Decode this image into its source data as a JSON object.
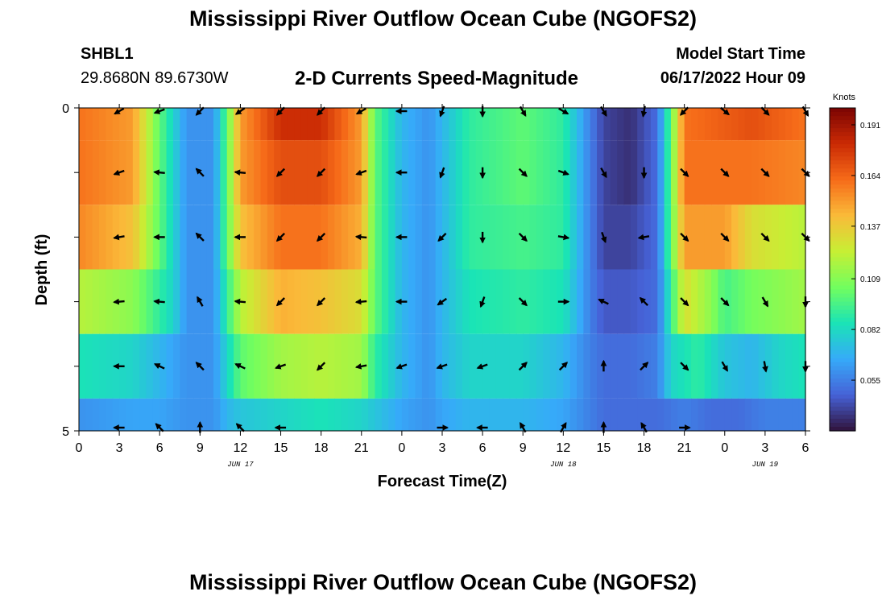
{
  "header": {
    "title": "Mississippi River Outflow Ocean Cube (NGOFS2)",
    "station": "SHBL1",
    "coords": "29.8680N  89.6730W",
    "subtitle": "2-D Currents Speed-Magnitude",
    "model_start_label": "Model Start Time",
    "model_start_value": "06/17/2022 Hour 09"
  },
  "footer": {
    "title": "Mississippi River Outflow Ocean Cube (NGOFS2)"
  },
  "colors": {
    "colormap": [
      "#30123b",
      "#4662d7",
      "#36aaf9",
      "#1ae4b6",
      "#72fe5e",
      "#c7ef34",
      "#faba39",
      "#f66b19",
      "#ca2a04",
      "#7a0403"
    ]
  },
  "chart_data": {
    "type": "heatmap",
    "xlabel": "Forecast Time(Z)",
    "ylabel": "Depth (ft)",
    "xlim": [
      0,
      54
    ],
    "ylim": [
      0,
      5
    ],
    "x_ticks": [
      {
        "v": 0,
        "t": "0"
      },
      {
        "v": 3,
        "t": "3"
      },
      {
        "v": 6,
        "t": "6"
      },
      {
        "v": 9,
        "t": "9"
      },
      {
        "v": 12,
        "t": "12"
      },
      {
        "v": 15,
        "t": "15"
      },
      {
        "v": 18,
        "t": "18"
      },
      {
        "v": 21,
        "t": "21"
      },
      {
        "v": 24,
        "t": "0"
      },
      {
        "v": 27,
        "t": "3"
      },
      {
        "v": 30,
        "t": "6"
      },
      {
        "v": 33,
        "t": "9"
      },
      {
        "v": 36,
        "t": "12"
      },
      {
        "v": 39,
        "t": "15"
      },
      {
        "v": 42,
        "t": "18"
      },
      {
        "v": 45,
        "t": "21"
      },
      {
        "v": 48,
        "t": "0"
      },
      {
        "v": 51,
        "t": "3"
      },
      {
        "v": 54,
        "t": "6"
      }
    ],
    "date_labels": [
      {
        "v": 12,
        "t": "JUN 17"
      },
      {
        "v": 36,
        "t": "JUN 18"
      },
      {
        "v": 51,
        "t": "JUN 19"
      }
    ],
    "y_ticks": [
      0,
      1,
      2,
      3,
      4,
      5
    ],
    "y_tick_labels": [
      {
        "v": 0,
        "t": "0"
      },
      {
        "v": 5,
        "t": "5"
      }
    ],
    "colorbar": {
      "title": "Knots",
      "range": [
        0.028,
        0.2
      ],
      "ticks": [
        0.191,
        0.164,
        0.137,
        0.109,
        0.082,
        0.055
      ]
    },
    "layers": [
      {
        "depth_top": 0.0,
        "depth_bottom": 0.5,
        "keys": [
          [
            0,
            0.16
          ],
          [
            4,
            0.15
          ],
          [
            6,
            0.1
          ],
          [
            7,
            0.08
          ],
          [
            8,
            0.06
          ],
          [
            10,
            0.06
          ],
          [
            11,
            0.1
          ],
          [
            12,
            0.15
          ],
          [
            15,
            0.18
          ],
          [
            18,
            0.18
          ],
          [
            21,
            0.15
          ],
          [
            22,
            0.1
          ],
          [
            24,
            0.07
          ],
          [
            26,
            0.06
          ],
          [
            27,
            0.07
          ],
          [
            29,
            0.09
          ],
          [
            33,
            0.1
          ],
          [
            36,
            0.09
          ],
          [
            38,
            0.055
          ],
          [
            39,
            0.04
          ],
          [
            41,
            0.035
          ],
          [
            43,
            0.05
          ],
          [
            44,
            0.1
          ],
          [
            45,
            0.16
          ],
          [
            50,
            0.17
          ],
          [
            54,
            0.16
          ]
        ]
      },
      {
        "depth_top": 0.5,
        "depth_bottom": 1.5,
        "keys": [
          [
            0,
            0.16
          ],
          [
            4,
            0.15
          ],
          [
            6,
            0.1
          ],
          [
            7,
            0.08
          ],
          [
            8,
            0.06
          ],
          [
            10,
            0.06
          ],
          [
            11,
            0.1
          ],
          [
            12,
            0.15
          ],
          [
            15,
            0.17
          ],
          [
            18,
            0.17
          ],
          [
            21,
            0.15
          ],
          [
            22,
            0.1
          ],
          [
            24,
            0.07
          ],
          [
            26,
            0.06
          ],
          [
            27,
            0.07
          ],
          [
            29,
            0.09
          ],
          [
            33,
            0.1
          ],
          [
            36,
            0.09
          ],
          [
            38,
            0.055
          ],
          [
            39,
            0.04
          ],
          [
            41,
            0.035
          ],
          [
            43,
            0.05
          ],
          [
            44,
            0.1
          ],
          [
            45,
            0.16
          ],
          [
            50,
            0.16
          ],
          [
            54,
            0.155
          ]
        ]
      },
      {
        "depth_top": 1.5,
        "depth_bottom": 2.5,
        "keys": [
          [
            0,
            0.155
          ],
          [
            4,
            0.14
          ],
          [
            6,
            0.1
          ],
          [
            7,
            0.08
          ],
          [
            8,
            0.06
          ],
          [
            10,
            0.06
          ],
          [
            11,
            0.1
          ],
          [
            12,
            0.14
          ],
          [
            15,
            0.16
          ],
          [
            18,
            0.16
          ],
          [
            21,
            0.145
          ],
          [
            22,
            0.1
          ],
          [
            24,
            0.07
          ],
          [
            26,
            0.06
          ],
          [
            27,
            0.07
          ],
          [
            29,
            0.09
          ],
          [
            33,
            0.095
          ],
          [
            36,
            0.09
          ],
          [
            38,
            0.055
          ],
          [
            39,
            0.04
          ],
          [
            41,
            0.04
          ],
          [
            43,
            0.05
          ],
          [
            44,
            0.1
          ],
          [
            45,
            0.15
          ],
          [
            48,
            0.15
          ],
          [
            50,
            0.13
          ],
          [
            54,
            0.12
          ]
        ]
      },
      {
        "depth_top": 2.5,
        "depth_bottom": 3.5,
        "keys": [
          [
            0,
            0.12
          ],
          [
            4,
            0.11
          ],
          [
            6,
            0.09
          ],
          [
            7,
            0.08
          ],
          [
            8,
            0.06
          ],
          [
            10,
            0.06
          ],
          [
            11,
            0.09
          ],
          [
            12,
            0.12
          ],
          [
            15,
            0.145
          ],
          [
            18,
            0.14
          ],
          [
            21,
            0.13
          ],
          [
            22,
            0.1
          ],
          [
            24,
            0.07
          ],
          [
            26,
            0.06
          ],
          [
            27,
            0.07
          ],
          [
            29,
            0.085
          ],
          [
            33,
            0.09
          ],
          [
            36,
            0.085
          ],
          [
            38,
            0.055
          ],
          [
            39,
            0.045
          ],
          [
            41,
            0.045
          ],
          [
            43,
            0.05
          ],
          [
            44,
            0.09
          ],
          [
            45,
            0.13
          ],
          [
            47,
            0.11
          ],
          [
            48,
            0.095
          ],
          [
            50,
            0.105
          ],
          [
            54,
            0.115
          ]
        ]
      },
      {
        "depth_top": 3.5,
        "depth_bottom": 4.5,
        "keys": [
          [
            0,
            0.085
          ],
          [
            4,
            0.08
          ],
          [
            6,
            0.07
          ],
          [
            8,
            0.06
          ],
          [
            10,
            0.06
          ],
          [
            11,
            0.08
          ],
          [
            12,
            0.1
          ],
          [
            15,
            0.115
          ],
          [
            18,
            0.12
          ],
          [
            21,
            0.115
          ],
          [
            22,
            0.09
          ],
          [
            24,
            0.07
          ],
          [
            26,
            0.06
          ],
          [
            27,
            0.07
          ],
          [
            29,
            0.08
          ],
          [
            33,
            0.08
          ],
          [
            36,
            0.07
          ],
          [
            38,
            0.055
          ],
          [
            39,
            0.05
          ],
          [
            41,
            0.05
          ],
          [
            43,
            0.055
          ],
          [
            44,
            0.08
          ],
          [
            46,
            0.09
          ],
          [
            48,
            0.075
          ],
          [
            50,
            0.07
          ],
          [
            52,
            0.08
          ],
          [
            54,
            0.085
          ]
        ]
      },
      {
        "depth_top": 4.5,
        "depth_bottom": 5.0,
        "keys": [
          [
            0,
            0.06
          ],
          [
            4,
            0.065
          ],
          [
            6,
            0.065
          ],
          [
            8,
            0.06
          ],
          [
            10,
            0.06
          ],
          [
            11,
            0.07
          ],
          [
            12,
            0.075
          ],
          [
            15,
            0.08
          ],
          [
            18,
            0.085
          ],
          [
            21,
            0.08
          ],
          [
            22,
            0.075
          ],
          [
            24,
            0.065
          ],
          [
            26,
            0.06
          ],
          [
            27,
            0.065
          ],
          [
            29,
            0.07
          ],
          [
            33,
            0.07
          ],
          [
            36,
            0.065
          ],
          [
            38,
            0.055
          ],
          [
            39,
            0.05
          ],
          [
            41,
            0.05
          ],
          [
            43,
            0.05
          ],
          [
            45,
            0.055
          ],
          [
            47,
            0.05
          ],
          [
            49,
            0.05
          ],
          [
            51,
            0.055
          ],
          [
            54,
            0.055
          ]
        ]
      }
    ],
    "arrow_rows": [
      {
        "depth": 0.05,
        "x": [
          3,
          6,
          9,
          12,
          15,
          18,
          21,
          24,
          27,
          30,
          33,
          36,
          39,
          42,
          45,
          48,
          51,
          54
        ],
        "dir_deg": [
          210,
          200,
          225,
          215,
          225,
          225,
          210,
          180,
          250,
          270,
          300,
          330,
          300,
          260,
          225,
          320,
          315,
          300
        ]
      },
      {
        "depth": 1.0,
        "x": [
          3,
          6,
          9,
          12,
          15,
          18,
          21,
          24,
          27,
          30,
          33,
          36,
          39,
          42,
          45,
          48,
          51,
          54
        ],
        "dir_deg": [
          200,
          175,
          135,
          175,
          225,
          225,
          200,
          180,
          250,
          270,
          315,
          340,
          300,
          270,
          315,
          315,
          315,
          315
        ]
      },
      {
        "depth": 2.0,
        "x": [
          3,
          6,
          9,
          12,
          15,
          18,
          21,
          24,
          27,
          30,
          33,
          36,
          39,
          42,
          45,
          48,
          51,
          54
        ],
        "dir_deg": [
          190,
          180,
          135,
          180,
          225,
          225,
          175,
          180,
          225,
          270,
          315,
          350,
          290,
          190,
          315,
          315,
          315,
          315
        ]
      },
      {
        "depth": 3.0,
        "x": [
          3,
          6,
          9,
          12,
          15,
          18,
          21,
          24,
          27,
          30,
          33,
          36,
          39,
          42,
          45,
          48,
          51,
          54
        ],
        "dir_deg": [
          185,
          175,
          120,
          175,
          225,
          225,
          185,
          180,
          215,
          250,
          315,
          360,
          155,
          135,
          315,
          315,
          300,
          270
        ]
      },
      {
        "depth": 4.0,
        "x": [
          3,
          6,
          9,
          12,
          15,
          18,
          21,
          24,
          27,
          30,
          33,
          36,
          39,
          42,
          45,
          48,
          51,
          54
        ],
        "dir_deg": [
          180,
          155,
          135,
          155,
          200,
          225,
          190,
          200,
          200,
          200,
          45,
          45,
          90,
          45,
          315,
          300,
          280,
          270
        ]
      },
      {
        "depth": 4.95,
        "x": [
          3,
          6,
          9,
          12,
          15,
          27,
          30,
          33,
          36,
          39,
          42,
          45
        ],
        "dir_deg": [
          180,
          135,
          90,
          135,
          180,
          0,
          180,
          120,
          60,
          90,
          120,
          0
        ]
      }
    ]
  }
}
